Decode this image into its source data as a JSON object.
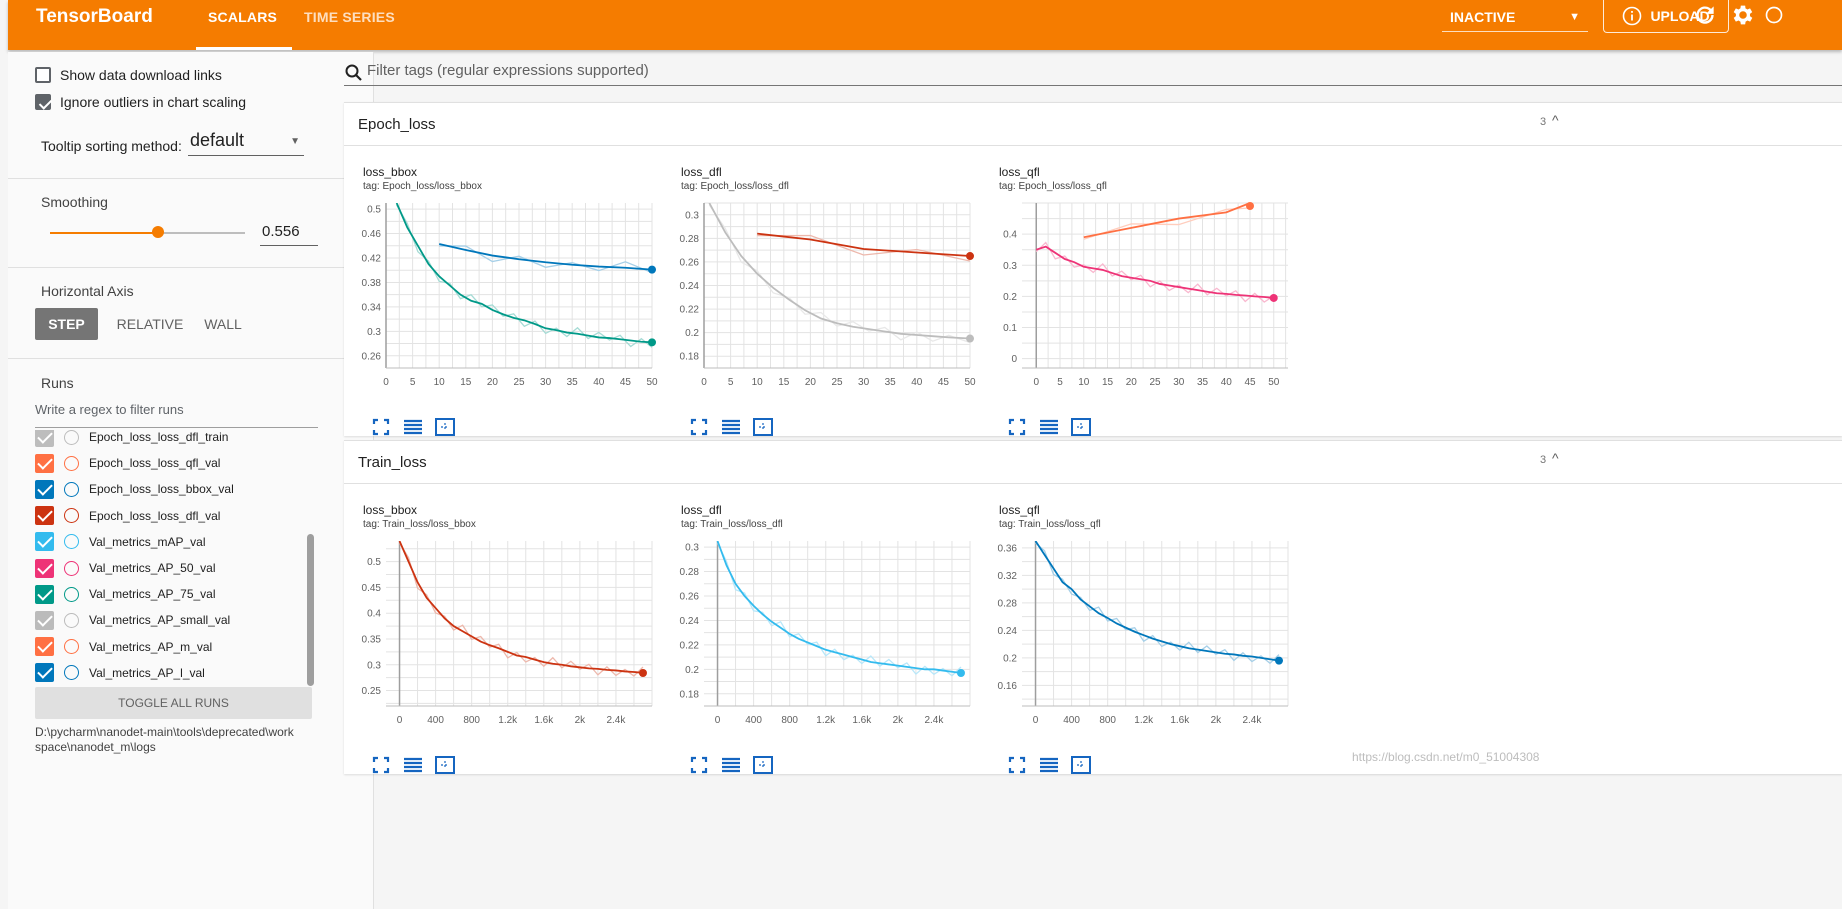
{
  "header": {
    "brand": "TensorBoard",
    "tabs": [
      "SCALARS",
      "TIME SERIES"
    ],
    "run_status": "INACTIVE",
    "upload_label": "UPLOAD"
  },
  "sidebar": {
    "show_download_label": "Show data download links",
    "show_download_checked": false,
    "ignore_outliers_label": "Ignore outliers in chart scaling",
    "ignore_outliers_checked": true,
    "tooltip_label": "Tooltip sorting method:",
    "tooltip_value": "default",
    "smoothing_label": "Smoothing",
    "smoothing_value": "0.556",
    "horizontal_axis_label": "Horizontal Axis",
    "axis_options": [
      "STEP",
      "RELATIVE",
      "WALL"
    ],
    "axis_selected": "STEP",
    "runs_label": "Runs",
    "runs_filter_placeholder": "Write a regex to filter runs",
    "runs": [
      {
        "name": "Epoch_loss_loss_dfl_train",
        "color": "#bdbdbd"
      },
      {
        "name": "Epoch_loss_loss_qfl_val",
        "color": "#ff7043"
      },
      {
        "name": "Epoch_loss_loss_bbox_val",
        "color": "#0077bb"
      },
      {
        "name": "Epoch_loss_loss_dfl_val",
        "color": "#cc3311"
      },
      {
        "name": "Val_metrics_mAP_val",
        "color": "#33bbee"
      },
      {
        "name": "Val_metrics_AP_50_val",
        "color": "#ee3377"
      },
      {
        "name": "Val_metrics_AP_75_val",
        "color": "#009988"
      },
      {
        "name": "Val_metrics_AP_small_val",
        "color": "#bbbbbb"
      },
      {
        "name": "Val_metrics_AP_m_val",
        "color": "#ff7043"
      },
      {
        "name": "Val_metrics_AP_l_val",
        "color": "#0077bb"
      }
    ],
    "toggle_all_label": "TOGGLE ALL RUNS",
    "logdir": "D:\\pycharm\\nanodet-main\\tools\\deprecated\\workspace\\nanodet_m\\logs"
  },
  "main": {
    "filter_placeholder": "Filter tags (regular expressions supported)",
    "groups": [
      {
        "title": "Epoch_loss",
        "count": "3",
        "plots": [
          {
            "title": "loss_bbox",
            "tag": "tag: Epoch_loss/loss_bbox"
          },
          {
            "title": "loss_dfl",
            "tag": "tag: Epoch_loss/loss_dfl"
          },
          {
            "title": "loss_qfl",
            "tag": "tag: Epoch_loss/loss_qfl"
          }
        ]
      },
      {
        "title": "Train_loss",
        "count": "3",
        "plots": [
          {
            "title": "loss_bbox",
            "tag": "tag: Train_loss/loss_bbox"
          },
          {
            "title": "loss_dfl",
            "tag": "tag: Train_loss/loss_dfl"
          },
          {
            "title": "loss_qfl",
            "tag": "tag: Train_loss/loss_qfl"
          }
        ]
      }
    ]
  },
  "watermark": "https://blog.csdn.net/m0_51004308",
  "chart_data": [
    {
      "type": "line",
      "title": "loss_bbox",
      "xlim": [
        0,
        50
      ],
      "ylim": [
        0.24,
        0.51
      ],
      "xticks": [
        0,
        5,
        10,
        15,
        20,
        25,
        30,
        35,
        40,
        45,
        50
      ],
      "yticks": [
        0.26,
        0.3,
        0.34,
        0.38,
        0.42,
        0.46,
        0.5
      ],
      "series": [
        {
          "color": "#0077bb",
          "x": [
            10,
            15,
            20,
            25,
            30,
            35,
            40,
            45,
            50
          ],
          "y": [
            0.443,
            0.433,
            0.424,
            0.418,
            0.413,
            0.409,
            0.406,
            0.404,
            0.401
          ]
        },
        {
          "color": "#009988",
          "x": [
            2,
            4,
            6,
            8,
            10,
            12,
            14,
            16,
            18,
            20,
            22,
            24,
            26,
            28,
            30,
            32,
            34,
            36,
            38,
            40,
            42,
            44,
            46,
            48,
            50
          ],
          "y": [
            0.51,
            0.47,
            0.44,
            0.41,
            0.39,
            0.375,
            0.36,
            0.35,
            0.345,
            0.335,
            0.328,
            0.322,
            0.318,
            0.312,
            0.305,
            0.302,
            0.298,
            0.296,
            0.293,
            0.29,
            0.289,
            0.287,
            0.285,
            0.283,
            0.282
          ]
        }
      ]
    },
    {
      "type": "line",
      "title": "loss_dfl",
      "xlim": [
        0,
        50
      ],
      "ylim": [
        0.17,
        0.31
      ],
      "xticks": [
        0,
        5,
        10,
        15,
        20,
        25,
        30,
        35,
        40,
        45,
        50
      ],
      "yticks": [
        0.18,
        0.2,
        0.22,
        0.24,
        0.26,
        0.28,
        0.3
      ],
      "series": [
        {
          "color": "#cc3311",
          "x": [
            10,
            20,
            30,
            40,
            50
          ],
          "y": [
            0.284,
            0.279,
            0.271,
            0.268,
            0.265
          ]
        },
        {
          "color": "#bdbdbd",
          "x": [
            1,
            4,
            7,
            10,
            13,
            16,
            19,
            22,
            25,
            28,
            31,
            34,
            37,
            40,
            43,
            46,
            50
          ],
          "y": [
            0.31,
            0.285,
            0.265,
            0.25,
            0.238,
            0.228,
            0.219,
            0.212,
            0.208,
            0.205,
            0.203,
            0.201,
            0.199,
            0.198,
            0.197,
            0.196,
            0.195
          ]
        }
      ]
    },
    {
      "type": "line",
      "title": "loss_qfl",
      "xlim": [
        -3,
        53
      ],
      "ylim": [
        -0.03,
        0.5
      ],
      "xticks": [
        0,
        5,
        10,
        15,
        20,
        25,
        30,
        35,
        40,
        45,
        50
      ],
      "yticks": [
        0,
        0.1,
        0.2,
        0.3,
        0.4
      ],
      "series": [
        {
          "color": "#ff7043",
          "x": [
            10,
            20,
            30,
            40,
            45
          ],
          "y": [
            0.39,
            0.42,
            0.45,
            0.47,
            0.5
          ]
        },
        {
          "color": "#ee3377",
          "x": [
            0,
            2,
            4,
            6,
            8,
            10,
            12,
            14,
            16,
            18,
            20,
            22,
            24,
            26,
            28,
            30,
            32,
            34,
            36,
            38,
            40,
            42,
            44,
            46,
            48,
            50
          ],
          "y": [
            0.35,
            0.36,
            0.34,
            0.32,
            0.31,
            0.295,
            0.29,
            0.285,
            0.275,
            0.265,
            0.26,
            0.255,
            0.25,
            0.24,
            0.235,
            0.23,
            0.225,
            0.22,
            0.215,
            0.21,
            0.208,
            0.205,
            0.203,
            0.2,
            0.198,
            0.195
          ]
        }
      ]
    },
    {
      "type": "line",
      "title": "loss_bbox",
      "xlim": [
        -150,
        2800
      ],
      "ylim": [
        0.22,
        0.54
      ],
      "xticks": [
        0,
        400,
        800,
        1200,
        1600,
        2000,
        2400
      ],
      "xticklabels": [
        "0",
        "400",
        "800",
        "1.2k",
        "1.6k",
        "2k",
        "2.4k"
      ],
      "yticks": [
        0.25,
        0.3,
        0.35,
        0.4,
        0.45,
        0.5
      ],
      "series": [
        {
          "color": "#cc3311",
          "x": [
            0,
            100,
            200,
            300,
            400,
            500,
            600,
            700,
            800,
            900,
            1000,
            1100,
            1200,
            1300,
            1400,
            1500,
            1600,
            1700,
            1800,
            1900,
            2000,
            2100,
            2200,
            2300,
            2400,
            2500,
            2600,
            2700
          ],
          "y": [
            0.54,
            0.5,
            0.46,
            0.43,
            0.41,
            0.39,
            0.375,
            0.365,
            0.355,
            0.345,
            0.338,
            0.332,
            0.325,
            0.318,
            0.315,
            0.31,
            0.305,
            0.302,
            0.3,
            0.297,
            0.295,
            0.293,
            0.292,
            0.29,
            0.289,
            0.287,
            0.286,
            0.284
          ]
        }
      ]
    },
    {
      "type": "line",
      "title": "loss_dfl",
      "xlim": [
        -150,
        2800
      ],
      "ylim": [
        0.17,
        0.305
      ],
      "xticks": [
        0,
        400,
        800,
        1200,
        1600,
        2000,
        2400
      ],
      "xticklabels": [
        "0",
        "400",
        "800",
        "1.2k",
        "1.6k",
        "2k",
        "2.4k"
      ],
      "yticks": [
        0.18,
        0.2,
        0.22,
        0.24,
        0.26,
        0.28,
        0.3
      ],
      "series": [
        {
          "color": "#33bbee",
          "x": [
            0,
            100,
            200,
            300,
            400,
            500,
            600,
            700,
            800,
            900,
            1000,
            1100,
            1200,
            1300,
            1400,
            1500,
            1600,
            1700,
            1800,
            1900,
            2000,
            2100,
            2200,
            2300,
            2400,
            2500,
            2600,
            2700
          ],
          "y": [
            0.305,
            0.285,
            0.27,
            0.26,
            0.252,
            0.245,
            0.239,
            0.234,
            0.229,
            0.225,
            0.222,
            0.219,
            0.216,
            0.214,
            0.212,
            0.21,
            0.208,
            0.206,
            0.205,
            0.204,
            0.203,
            0.202,
            0.201,
            0.2,
            0.2,
            0.199,
            0.198,
            0.197
          ]
        }
      ]
    },
    {
      "type": "line",
      "title": "loss_qfl",
      "xlim": [
        -150,
        2800
      ],
      "ylim": [
        0.13,
        0.37
      ],
      "xticks": [
        0,
        400,
        800,
        1200,
        1600,
        2000,
        2400
      ],
      "xticklabels": [
        "0",
        "400",
        "800",
        "1.2k",
        "1.6k",
        "2k",
        "2.4k"
      ],
      "yticks": [
        0.16,
        0.2,
        0.24,
        0.28,
        0.32,
        0.36
      ],
      "series": [
        {
          "color": "#0077bb",
          "x": [
            0,
            100,
            200,
            300,
            400,
            500,
            600,
            700,
            800,
            900,
            1000,
            1100,
            1200,
            1300,
            1400,
            1500,
            1600,
            1700,
            1800,
            1900,
            2000,
            2100,
            2200,
            2300,
            2400,
            2500,
            2600,
            2700
          ],
          "y": [
            0.37,
            0.35,
            0.33,
            0.31,
            0.3,
            0.285,
            0.275,
            0.265,
            0.258,
            0.25,
            0.244,
            0.238,
            0.233,
            0.228,
            0.224,
            0.22,
            0.217,
            0.214,
            0.212,
            0.21,
            0.208,
            0.206,
            0.205,
            0.203,
            0.202,
            0.2,
            0.198,
            0.196
          ]
        }
      ]
    }
  ]
}
